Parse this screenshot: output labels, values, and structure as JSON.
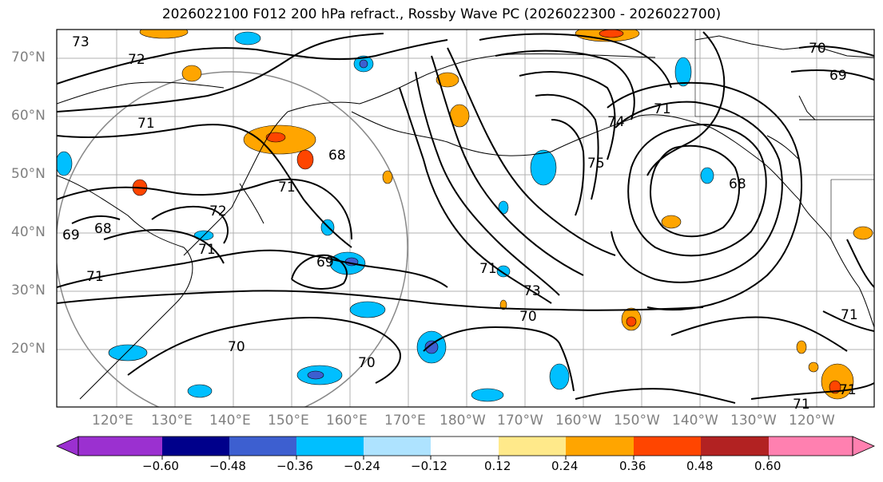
{
  "title": "2026022100 F012 200 hPa refract., Rossby Wave PC (2026022300 - 2026022700)",
  "lat_labels": [
    "70°N",
    "60°N",
    "50°N",
    "40°N",
    "30°N",
    "20°N"
  ],
  "lon_labels": [
    "120°E",
    "130°E",
    "140°E",
    "150°E",
    "160°E",
    "170°E",
    "180°W",
    "170°W",
    "160°W",
    "150°W",
    "140°W",
    "130°W",
    "120°W"
  ],
  "contour_labels": [
    "73",
    "72",
    "71",
    "72",
    "71",
    "69",
    "68",
    "69",
    "68",
    "71",
    "71",
    "70",
    "70",
    "71",
    "73",
    "70",
    "75",
    "74",
    "71",
    "68",
    "70",
    "69",
    "71",
    "71",
    "71"
  ],
  "colorbar": {
    "ticks": [
      "−0.60",
      "−0.48",
      "−0.36",
      "−0.24",
      "−0.12",
      "0.12",
      "0.24",
      "0.36",
      "0.48",
      "0.60"
    ],
    "colors": [
      "#9b30d0",
      "#00008b",
      "#3d5fd0",
      "#00bfff",
      "#aee3ff",
      "#ffffff",
      "#ffe98a",
      "#ffa500",
      "#ff4500",
      "#b22222",
      "#ff80b0"
    ]
  }
}
